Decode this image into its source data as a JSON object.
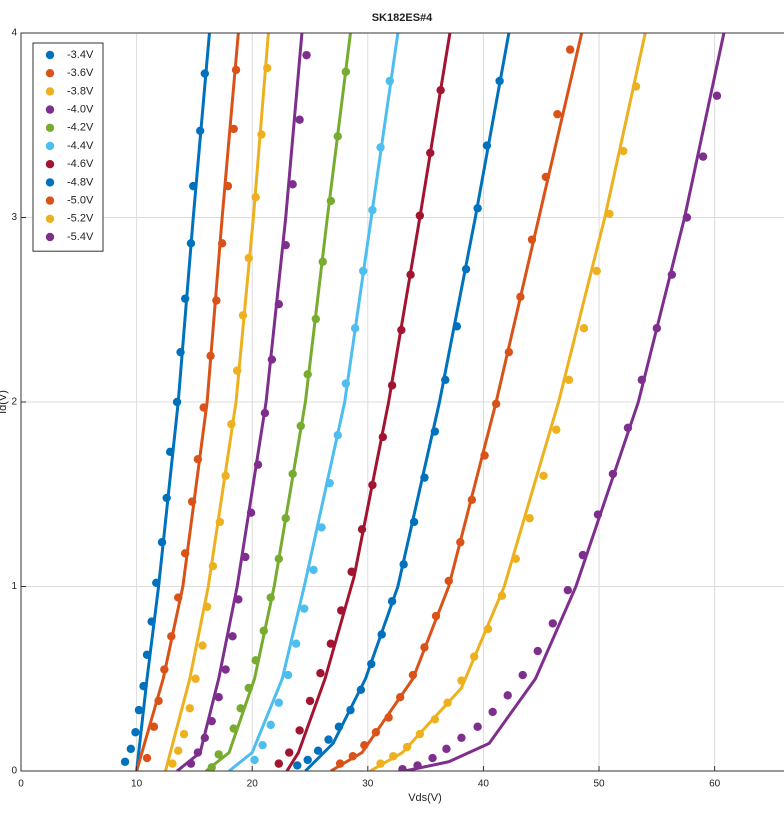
{
  "chart_data": {
    "type": "scatter_fit",
    "title": "SK182ES#4",
    "x_label": "Vds(V)",
    "y_label": "Id(V)",
    "xlim": [
      0,
      66
    ],
    "ylim": [
      0,
      4
    ],
    "xticks": [
      0,
      10,
      20,
      30,
      40,
      50,
      60
    ],
    "yticks": [
      0,
      1,
      2,
      3,
      4
    ],
    "grid": true,
    "legend": "top-left",
    "series": [
      {
        "name": "-3.4V",
        "color": "#0072BD",
        "x": [
          9,
          9.5,
          9.9,
          10.2,
          10.6,
          10.9,
          11.3,
          11.7,
          12.2,
          12.6,
          12.9,
          13.5,
          13.8,
          14.2,
          14.7,
          14.9,
          15.5,
          15.9
        ],
        "values": [
          0.05,
          0.12,
          0.21,
          0.33,
          0.46,
          0.63,
          0.81,
          1.02,
          1.24,
          1.48,
          1.73,
          2.0,
          2.27,
          2.56,
          2.86,
          3.17,
          3.47,
          3.78
        ],
        "fit_x": [
          10,
          10.9,
          11.9,
          13.6,
          14.9,
          16.3
        ],
        "fit_values": [
          0,
          0.5,
          1,
          2,
          3,
          4
        ]
      },
      {
        "name": "-3.6V",
        "color": "#D95319",
        "x": [
          10.9,
          11.5,
          11.9,
          12.4,
          13.0,
          13.6,
          14.2,
          14.8,
          15.3,
          15.8,
          16.4,
          16.9,
          17.4,
          17.9,
          18.4,
          18.6
        ],
        "values": [
          0.07,
          0.24,
          0.38,
          0.55,
          0.73,
          0.94,
          1.18,
          1.46,
          1.69,
          1.97,
          2.25,
          2.55,
          2.86,
          3.17,
          3.48,
          3.8
        ],
        "fit_x": [
          10,
          12.3,
          14,
          16.1,
          17.4,
          18.8
        ],
        "fit_values": [
          0,
          0.5,
          1,
          2,
          3,
          4
        ]
      },
      {
        "name": "-3.8V",
        "color": "#EDB120",
        "x": [
          13.1,
          13.6,
          14.1,
          14.6,
          15.1,
          15.7,
          16.1,
          16.6,
          17.2,
          17.7,
          18.2,
          18.7,
          19.2,
          19.7,
          20.3,
          20.8,
          21.3
        ],
        "values": [
          0.04,
          0.11,
          0.2,
          0.34,
          0.5,
          0.68,
          0.89,
          1.11,
          1.35,
          1.6,
          1.88,
          2.17,
          2.47,
          2.78,
          3.11,
          3.45,
          3.81
        ],
        "fit_x": [
          12.5,
          14.6,
          16.2,
          18.6,
          20.1,
          21.4
        ],
        "fit_values": [
          0,
          0.5,
          1,
          2,
          3,
          4
        ]
      },
      {
        "name": "-4.0V",
        "color": "#7E2F8E",
        "x": [
          14.7,
          15.3,
          15.9,
          16.5,
          17.1,
          17.7,
          18.3,
          18.8,
          19.4,
          19.9,
          20.5,
          21.1,
          21.7,
          22.3,
          22.9,
          23.5,
          24.1,
          24.7
        ],
        "values": [
          0.04,
          0.1,
          0.18,
          0.27,
          0.4,
          0.55,
          0.73,
          0.93,
          1.16,
          1.4,
          1.66,
          1.94,
          2.23,
          2.53,
          2.85,
          3.18,
          3.53,
          3.88
        ],
        "fit_x": [
          13.5,
          15.5,
          17.1,
          18.7,
          21.2,
          22.9,
          24.3
        ],
        "fit_values": [
          0,
          0.1,
          0.5,
          1,
          2,
          3,
          4
        ]
      },
      {
        "name": "-4.2V",
        "color": "#77AC30",
        "x": [
          16.5,
          17.1,
          18.4,
          19.0,
          19.7,
          20.3,
          21.0,
          21.6,
          22.3,
          22.9,
          23.5,
          24.2,
          24.8,
          25.5,
          26.1,
          26.8,
          27.4,
          28.1
        ],
        "values": [
          0.02,
          0.09,
          0.23,
          0.34,
          0.45,
          0.6,
          0.76,
          0.94,
          1.15,
          1.37,
          1.61,
          1.87,
          2.15,
          2.45,
          2.76,
          3.09,
          3.44,
          3.79
        ],
        "fit_x": [
          16,
          18,
          20.2,
          21.9,
          24.6,
          26.5,
          28.5
        ],
        "fit_values": [
          0,
          0.1,
          0.5,
          1,
          2,
          3,
          4
        ]
      },
      {
        "name": "-4.4V",
        "color": "#4DBEEE",
        "x": [
          20.2,
          20.9,
          21.6,
          22.3,
          23.1,
          23.8,
          24.5,
          25.3,
          26.0,
          26.7,
          27.4,
          28.1,
          28.9,
          29.6,
          30.4,
          31.1,
          31.9
        ],
        "values": [
          0.06,
          0.14,
          0.25,
          0.37,
          0.52,
          0.69,
          0.88,
          1.09,
          1.32,
          1.56,
          1.82,
          2.1,
          2.4,
          2.71,
          3.04,
          3.38,
          3.74
        ],
        "fit_x": [
          18,
          20,
          22.6,
          24.5,
          28.0,
          30.3,
          32.6
        ],
        "fit_values": [
          0,
          0.1,
          0.5,
          1,
          2,
          3,
          4
        ]
      },
      {
        "name": "-4.6V",
        "color": "#A2142F",
        "x": [
          22.3,
          23.2,
          24.1,
          25.0,
          25.9,
          26.8,
          27.7,
          28.6,
          29.5,
          30.4,
          31.3,
          32.1,
          32.9,
          33.7,
          34.5,
          35.4,
          36.3
        ],
        "values": [
          0.04,
          0.1,
          0.22,
          0.38,
          0.53,
          0.69,
          0.87,
          1.08,
          1.31,
          1.55,
          1.81,
          2.09,
          2.39,
          2.69,
          3.01,
          3.35,
          3.69
        ],
        "fit_x": [
          23,
          24,
          26.3,
          28.8,
          31.8,
          34.5,
          37.1
        ],
        "fit_values": [
          0,
          0.1,
          0.5,
          1.05,
          2,
          3,
          4
        ]
      },
      {
        "name": "-4.8V",
        "color": "#0072BD",
        "x": [
          23.9,
          24.8,
          25.7,
          26.6,
          27.5,
          28.5,
          29.4,
          30.3,
          31.2,
          32.1,
          33.1,
          34.0,
          34.9,
          35.8,
          36.7,
          37.7,
          38.5,
          39.5,
          40.3,
          41.4
        ],
        "values": [
          0.03,
          0.06,
          0.11,
          0.17,
          0.24,
          0.33,
          0.44,
          0.58,
          0.74,
          0.92,
          1.12,
          1.35,
          1.59,
          1.84,
          2.12,
          2.41,
          2.72,
          3.05,
          3.39,
          3.74
        ],
        "fit_x": [
          24.6,
          27,
          29.8,
          32.6,
          36.2,
          39.3,
          42.2
        ],
        "fit_values": [
          0,
          0.15,
          0.5,
          1,
          2,
          3,
          4
        ]
      },
      {
        "name": "-5.0V",
        "color": "#D95319",
        "x": [
          27.6,
          28.7,
          29.7,
          30.7,
          31.8,
          32.8,
          33.9,
          34.9,
          35.9,
          37.0,
          38.0,
          39.0,
          40.1,
          41.1,
          42.2,
          43.2,
          44.2,
          45.4,
          46.4,
          47.5
        ],
        "values": [
          0.04,
          0.08,
          0.14,
          0.21,
          0.29,
          0.4,
          0.52,
          0.67,
          0.84,
          1.03,
          1.24,
          1.47,
          1.71,
          1.99,
          2.27,
          2.57,
          2.88,
          3.22,
          3.56,
          3.91
        ],
        "fit_x": [
          26.8,
          29.5,
          33.9,
          37,
          41.1,
          44.8,
          48.5
        ],
        "fit_values": [
          0,
          0.1,
          0.5,
          1,
          2,
          3,
          4
        ]
      },
      {
        "name": "-5.2V",
        "color": "#EDB120",
        "x": [
          31.1,
          32.2,
          33.4,
          34.5,
          35.8,
          36.9,
          38.1,
          39.2,
          40.4,
          41.6,
          42.8,
          44.0,
          45.2,
          46.3,
          47.4,
          48.7,
          49.8,
          50.9,
          52.1,
          53.2
        ],
        "values": [
          0.04,
          0.08,
          0.13,
          0.2,
          0.28,
          0.37,
          0.49,
          0.62,
          0.77,
          0.95,
          1.15,
          1.37,
          1.6,
          1.85,
          2.12,
          2.4,
          2.71,
          3.02,
          3.36,
          3.71
        ],
        "fit_x": [
          30.2,
          33,
          38.1,
          41.8,
          46.5,
          50.5,
          54
        ],
        "fit_values": [
          0,
          0.1,
          0.45,
          1,
          2,
          3,
          4
        ]
      },
      {
        "name": "-5.4V",
        "color": "#7E2F8E",
        "x": [
          33.0,
          34.3,
          35.6,
          36.8,
          38.1,
          39.5,
          40.8,
          42.1,
          43.4,
          44.7,
          46.0,
          47.3,
          48.6,
          49.9,
          51.2,
          52.5,
          53.7,
          55.0,
          56.3,
          57.6,
          59.0,
          60.2
        ],
        "values": [
          0.01,
          0.03,
          0.07,
          0.12,
          0.18,
          0.24,
          0.32,
          0.41,
          0.52,
          0.65,
          0.8,
          0.98,
          1.17,
          1.39,
          1.61,
          1.86,
          2.12,
          2.4,
          2.69,
          3.0,
          3.33,
          3.66
        ],
        "fit_x": [
          33.2,
          37,
          40.5,
          44.5,
          48,
          53.4,
          57.4,
          60.8
        ],
        "fit_values": [
          0,
          0.05,
          0.15,
          0.5,
          1,
          2,
          3,
          4
        ]
      }
    ]
  }
}
